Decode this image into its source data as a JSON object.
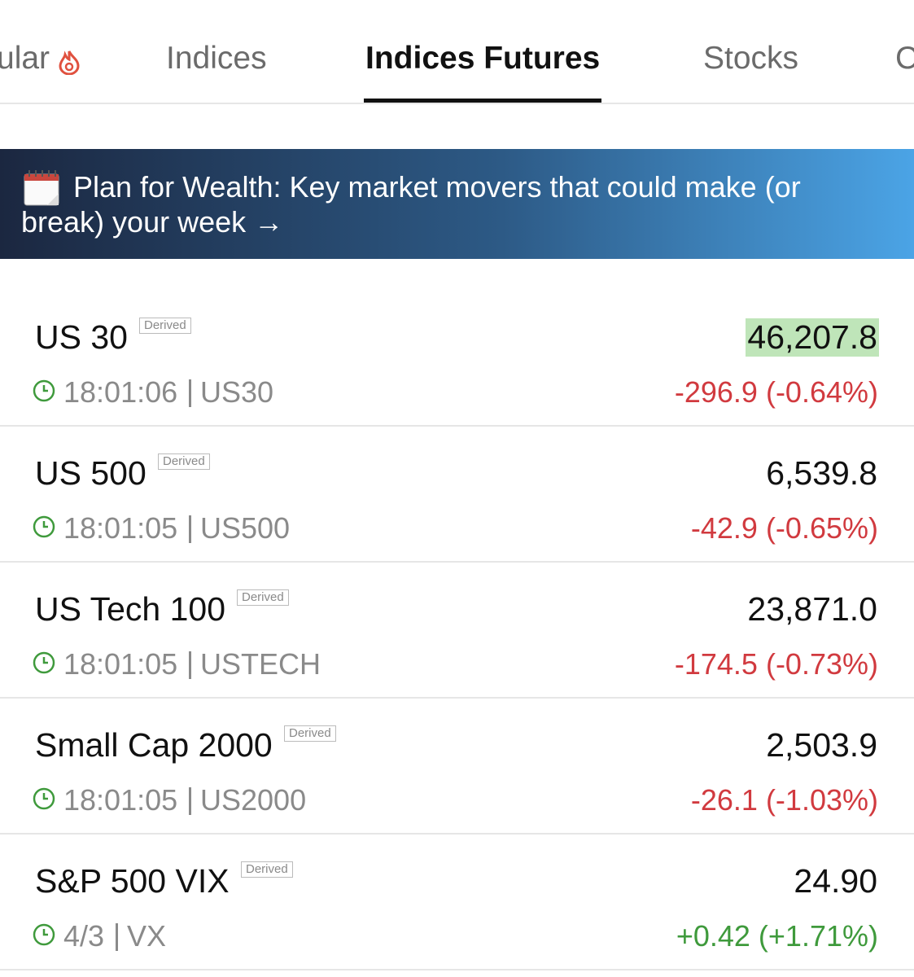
{
  "tabs": {
    "items": [
      "ular",
      "Indices",
      "Indices Futures",
      "Stocks",
      "C"
    ],
    "active": 2
  },
  "banner": {
    "text": "Plan for Wealth: Key market movers that could make (or break) your week →"
  },
  "rows": [
    {
      "name": "US 30",
      "badge": "Derived",
      "time": "18:01:06",
      "symbol": "US30",
      "price": "46,207.8",
      "change": "-296.9 (-0.64%)",
      "change_color": "#d13a3f",
      "price_highlight": "#bfe5b9"
    },
    {
      "name": "US 500",
      "badge": "Derived",
      "time": "18:01:05",
      "symbol": "US500",
      "price": "6,539.8",
      "change": "-42.9 (-0.65%)",
      "change_color": "#d13a3f"
    },
    {
      "name": "US Tech 100",
      "badge": "Derived",
      "time": "18:01:05",
      "symbol": "USTECH",
      "price": "23,871.0",
      "change": "-174.5 (-0.73%)",
      "change_color": "#d13a3f"
    },
    {
      "name": "Small Cap 2000",
      "badge": "Derived",
      "time": "18:01:05",
      "symbol": "US2000",
      "price": "2,503.9",
      "change": "-26.1 (-1.03%)",
      "change_color": "#d13a3f"
    },
    {
      "name": "S&P 500 VIX",
      "badge": "Derived",
      "time": "4/3",
      "symbol": "VX",
      "price": "24.90",
      "change": "+0.42 (+1.71%)",
      "change_color": "#3f9a3c"
    }
  ]
}
